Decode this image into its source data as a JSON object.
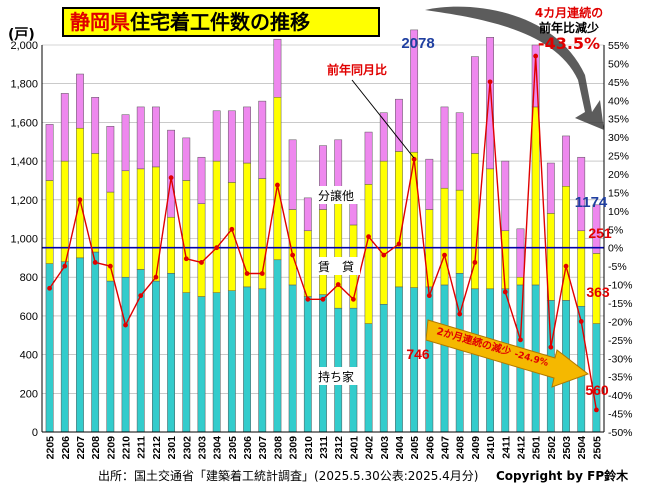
{
  "title": {
    "part1": "静岡県",
    "part2": "住宅着工件数の推移"
  },
  "unit_label": "(戸)",
  "top_note": {
    "line1": "4カ月連続の",
    "line2": "前年比減少",
    "line3": "-43.5%"
  },
  "source": "出所：国土交通省「建築着工統計調査」(2025.5.30公表:2025.4月分)",
  "copyright": "Copyright by FP鈴木",
  "colors": {
    "owned": "#33cccc",
    "rental": "#ffff00",
    "sale": "#ee88ee",
    "line": "#e00000",
    "zero_line": "#0000aa",
    "arrow": "#f5b800",
    "curved_arrow": "#333333"
  },
  "chart_data": {
    "type": "bar",
    "stacked": true,
    "categories": [
      "2205",
      "2206",
      "2207",
      "2208",
      "2209",
      "2210",
      "2211",
      "2212",
      "2301",
      "2302",
      "2303",
      "2304",
      "2305",
      "2306",
      "2307",
      "2308",
      "2309",
      "2310",
      "2311",
      "2312",
      "2401",
      "2402",
      "2403",
      "2404",
      "2405",
      "2406",
      "2407",
      "2408",
      "2409",
      "2410",
      "2411",
      "2412",
      "2501",
      "2502",
      "2503",
      "2504",
      "2505"
    ],
    "series": [
      {
        "name": "持ち家",
        "values": [
          870,
          880,
          900,
          930,
          780,
          800,
          840,
          780,
          820,
          720,
          700,
          720,
          730,
          750,
          740,
          890,
          760,
          700,
          710,
          640,
          640,
          560,
          660,
          750,
          746,
          750,
          760,
          820,
          740,
          740,
          740,
          760,
          760,
          680,
          680,
          650,
          560
        ]
      },
      {
        "name": "賃　貸",
        "values": [
          430,
          520,
          670,
          510,
          460,
          550,
          520,
          590,
          290,
          580,
          480,
          680,
          560,
          640,
          570,
          840,
          390,
          340,
          440,
          570,
          430,
          720,
          740,
          700,
          700,
          400,
          500,
          430,
          700,
          620,
          300,
          40,
          920,
          450,
          590,
          390,
          363
        ]
      },
      {
        "name": "分譲他",
        "values": [
          290,
          350,
          280,
          290,
          340,
          290,
          320,
          310,
          450,
          220,
          240,
          260,
          370,
          290,
          400,
          300,
          360,
          170,
          330,
          300,
          200,
          270,
          250,
          270,
          632,
          260,
          420,
          400,
          500,
          680,
          360,
          250,
          320,
          260,
          260,
          380,
          251
        ]
      }
    ],
    "line_series": {
      "name": "前年同月比",
      "axis": "right",
      "unit": "%",
      "values": [
        -11,
        -5,
        13,
        -4,
        -5,
        -21,
        -13,
        -8,
        19,
        -3,
        -4,
        0,
        5,
        -7,
        -7,
        17,
        -2,
        -14,
        -14,
        -10,
        -14,
        3,
        -2,
        1,
        24,
        -13,
        -2,
        -18,
        -4,
        45,
        -12,
        -25,
        52,
        -27,
        -5,
        -20,
        -44
      ]
    },
    "ylim_left": [
      0,
      2000
    ],
    "yticks_left": [
      "0",
      "200",
      "400",
      "600",
      "800",
      "1,000",
      "1,200",
      "1,400",
      "1,600",
      "1,800",
      "2,000"
    ],
    "ylim_right": [
      -50,
      55
    ],
    "yticks_right": [
      "-50%",
      "-45%",
      "-40%",
      "-35%",
      "-30%",
      "-25%",
      "-20%",
      "-15%",
      "-10%",
      "-5%",
      "0%",
      "5%",
      "10%",
      "15%",
      "20%",
      "25%",
      "30%",
      "35%",
      "40%",
      "45%",
      "50%",
      "55%"
    ],
    "annotations": {
      "peak_total": "2078",
      "last_total": "1174",
      "last_sale": "251",
      "last_rental": "363",
      "last_owned": "560",
      "owned_2405": "746",
      "line_label": "前年同月比",
      "sale_label": "分譲他",
      "rental_label": "賃　貸",
      "owned_label": "持ち家",
      "arrow_text": "2か月連続の減少",
      "arrow_pct": "-24.9%"
    }
  }
}
